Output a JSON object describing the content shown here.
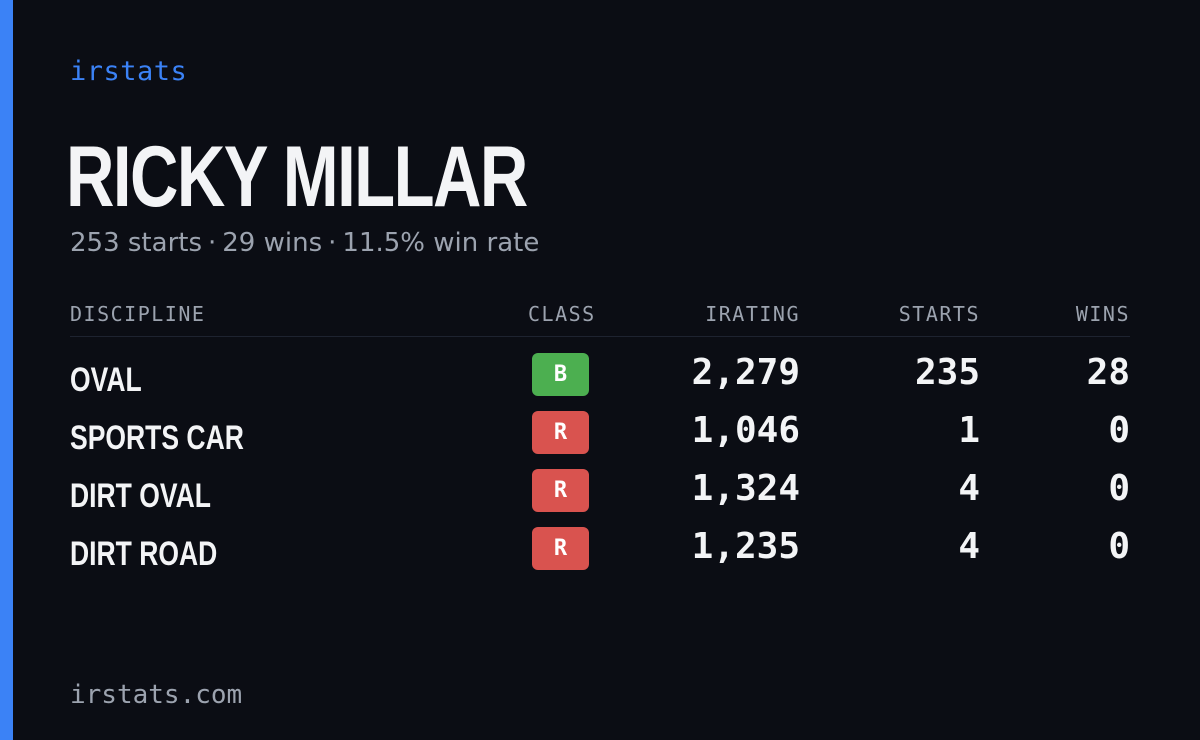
{
  "brand": "irstats",
  "driver": {
    "name": "RICKY MILLAR",
    "summary": {
      "starts": "253 starts",
      "wins": "29 wins",
      "win_rate": "11.5% win rate",
      "separator": "·"
    }
  },
  "table": {
    "headers": {
      "discipline": "DISCIPLINE",
      "class": "CLASS",
      "irating": "IRATING",
      "starts": "STARTS",
      "wins": "WINS"
    },
    "rows": [
      {
        "discipline": "OVAL",
        "class": "B",
        "class_color": "#4caf50",
        "irating": "2,279",
        "starts": "235",
        "wins": "28"
      },
      {
        "discipline": "SPORTS CAR",
        "class": "R",
        "class_color": "#d9534f",
        "irating": "1,046",
        "starts": "1",
        "wins": "0"
      },
      {
        "discipline": "DIRT OVAL",
        "class": "R",
        "class_color": "#d9534f",
        "irating": "1,324",
        "starts": "4",
        "wins": "0"
      },
      {
        "discipline": "DIRT ROAD",
        "class": "R",
        "class_color": "#d9534f",
        "irating": "1,235",
        "starts": "4",
        "wins": "0"
      }
    ]
  },
  "footer": "irstats.com",
  "colors": {
    "accent": "#3b82f6",
    "background": "#0b0d14"
  }
}
